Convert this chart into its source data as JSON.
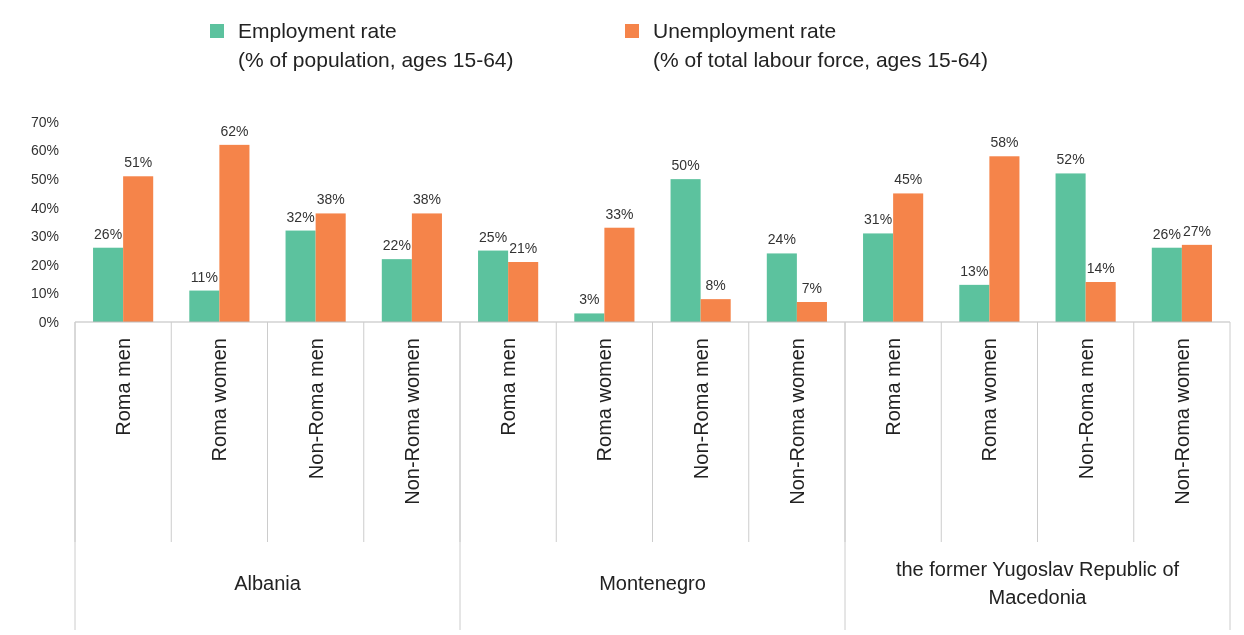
{
  "chart_data": {
    "type": "bar",
    "categories": [
      "Roma men",
      "Roma women",
      "Non-Roma men",
      "Non-Roma women",
      "Roma men",
      "Roma women",
      "Non-Roma men",
      "Non-Roma women",
      "Roma men",
      "Roma women",
      "Non-Roma men",
      "Non-Roma women"
    ],
    "annotations": [
      "Albania",
      "Montenegro",
      "the former Yugoslav Republic of Macedonia"
    ],
    "series": [
      {
        "name": "Employment rate\n(% of population, ages 15-64)",
        "color": "#5cc29e",
        "values": [
          26,
          11,
          32,
          22,
          25,
          3,
          50,
          24,
          31,
          13,
          52,
          26
        ],
        "value_labels": [
          "26%",
          "11%",
          "32%",
          "22%",
          "25%",
          "3%",
          "50%",
          "24%",
          "31%",
          "13%",
          "52%",
          "26%"
        ]
      },
      {
        "name": "Unemployment rate\n(% of total labour force, ages 15-64)",
        "color": "#f5844a",
        "values": [
          51,
          62,
          38,
          38,
          21,
          33,
          8,
          7,
          45,
          58,
          14,
          27
        ],
        "value_labels": [
          "51%",
          "62%",
          "38%",
          "38%",
          "21%",
          "33%",
          "8%",
          "7%",
          "45%",
          "58%",
          "14%",
          "27%"
        ]
      }
    ],
    "ylim": [
      0,
      70
    ],
    "yticks": [
      {
        "value": 0,
        "label": "0%"
      },
      {
        "value": 10,
        "label": "10%"
      },
      {
        "value": 20,
        "label": "20%"
      },
      {
        "value": 30,
        "label": "30%"
      },
      {
        "value": 40,
        "label": "40%"
      },
      {
        "value": 50,
        "label": "50%"
      },
      {
        "value": 60,
        "label": "60%"
      },
      {
        "value": 70,
        "label": "70%"
      }
    ],
    "legend": "top"
  }
}
